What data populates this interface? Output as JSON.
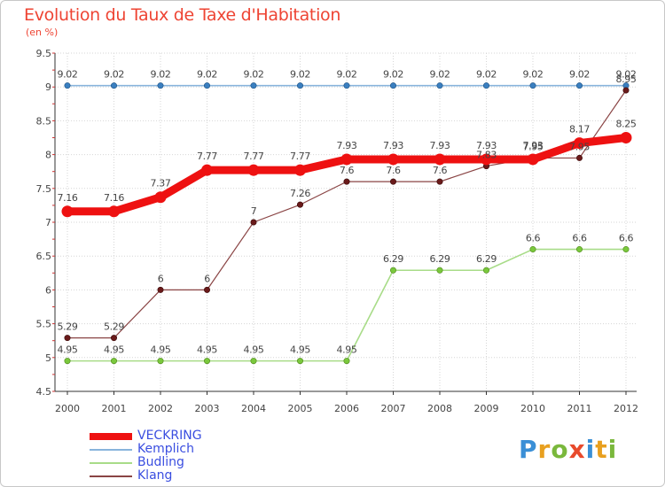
{
  "header": {
    "title": "Evolution du Taux de Taxe d'Habitation",
    "subtitle": "(en %)"
  },
  "logo": {
    "letters": [
      "P",
      "r",
      "o",
      "x",
      "i",
      "t",
      "i"
    ],
    "colors": [
      "#3a8fd6",
      "#e8a020",
      "#7ab83c",
      "#e84a2c",
      "#3a8fd6",
      "#e8a020",
      "#7ab83c"
    ]
  },
  "chart_data": {
    "type": "line",
    "x": [
      "2000",
      "2001",
      "2002",
      "2003",
      "2004",
      "2005",
      "2006",
      "2007",
      "2008",
      "2009",
      "2010",
      "2011",
      "2012"
    ],
    "ylim": [
      4.5,
      9.5
    ],
    "yticks": [
      "4.5",
      "5",
      "5.5",
      "6",
      "6.5",
      "7",
      "7.5",
      "8",
      "8.5",
      "9",
      "9.5"
    ],
    "grid": true,
    "legend_position": "bottom-left",
    "series": [
      {
        "name": "VECKRING",
        "color": "#ee1111",
        "marker_color": "#ee1111",
        "values": [
          7.16,
          7.16,
          7.37,
          7.77,
          7.77,
          7.77,
          7.93,
          7.93,
          7.93,
          7.93,
          7.93,
          8.17,
          8.25
        ],
        "labels": [
          "7.16",
          "7.16",
          "7.37",
          "7.77",
          "7.77",
          "7.77",
          "7.93",
          "7.93",
          "7.93",
          "7.93",
          "7.93",
          "8.17",
          "8.25"
        ]
      },
      {
        "name": "Kemplich",
        "color": "#88b4dc",
        "marker_color": "#3a7fc0",
        "values": [
          9.02,
          9.02,
          9.02,
          9.02,
          9.02,
          9.02,
          9.02,
          9.02,
          9.02,
          9.02,
          9.02,
          9.02,
          9.02
        ],
        "labels": [
          "9.02",
          "9.02",
          "9.02",
          "9.02",
          "9.02",
          "9.02",
          "9.02",
          "9.02",
          "9.02",
          "9.02",
          "9.02",
          "9.02",
          "9.02"
        ]
      },
      {
        "name": "Budling",
        "color": "#a8dc88",
        "marker_color": "#7ac83c",
        "values": [
          4.95,
          4.95,
          4.95,
          4.95,
          4.95,
          4.95,
          4.95,
          6.29,
          6.29,
          6.29,
          6.6,
          6.6,
          6.6
        ],
        "labels": [
          "4.95",
          "4.95",
          "4.95",
          "4.95",
          "4.95",
          "4.95",
          "4.95",
          "6.29",
          "6.29",
          "6.29",
          "6.6",
          "6.6",
          "6.6"
        ]
      },
      {
        "name": "Klang",
        "color": "#8a4444",
        "marker_color": "#6a1a1a",
        "values": [
          5.29,
          5.29,
          6,
          6,
          7,
          7.26,
          7.6,
          7.6,
          7.6,
          7.83,
          7.95,
          7.95,
          8.95
        ],
        "labels": [
          "5.29",
          "5.29",
          "6",
          "6",
          "7",
          "7.26",
          "7.6",
          "7.6",
          "7.6",
          "7.83",
          "7.95",
          "7.95",
          "8.95"
        ]
      }
    ]
  }
}
